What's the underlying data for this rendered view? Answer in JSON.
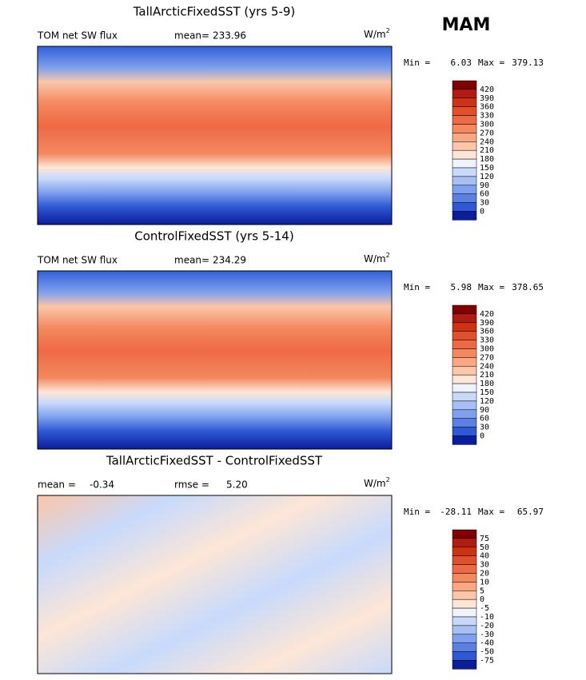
{
  "season": "MAM",
  "colors": [
    "#800000",
    "#b01c10",
    "#cc3313",
    "#e0502a",
    "#ee6a44",
    "#f4885f",
    "#fba882",
    "#fcc6a8",
    "#fde6d6",
    "#eef3ff",
    "#c8dafc",
    "#a6c0f6",
    "#7fa0ee",
    "#5a80e4",
    "#2f58d4",
    "#0a1e9c"
  ],
  "panels": [
    {
      "title": "TallArcticFixedSST (yrs 5-9)",
      "variable": "TOM net SW flux",
      "stat1_label": "mean=",
      "stat1": "233.96",
      "units": "W/m",
      "units_exp": "2",
      "min_label": "Min =",
      "min": "6.03",
      "max_label": "Max =",
      "max": "379.13",
      "levels": [
        "420",
        "390",
        "360",
        "330",
        "300",
        "270",
        "240",
        "210",
        "180",
        "150",
        "120",
        "90",
        "60",
        "30",
        "0"
      ]
    },
    {
      "title": "ControlFixedSST (yrs 5-14)",
      "variable": "TOM net SW flux",
      "stat1_label": "mean=",
      "stat1": "234.29",
      "units": "W/m",
      "units_exp": "2",
      "min_label": "Min =",
      "min": "5.98",
      "max_label": "Max =",
      "max": "378.65",
      "levels": [
        "420",
        "390",
        "360",
        "330",
        "300",
        "270",
        "240",
        "210",
        "180",
        "150",
        "120",
        "90",
        "60",
        "30",
        "0"
      ]
    },
    {
      "title": "TallArcticFixedSST - ControlFixedSST",
      "stat1_label": "mean =",
      "stat1": "-0.34",
      "stat2_label": "rmse =",
      "stat2": "5.20",
      "units": "W/m",
      "units_exp": "2",
      "min_label": "Min =",
      "min": "-28.11",
      "max_label": "Max =",
      "max": "65.97",
      "levels": [
        "75",
        "50",
        "40",
        "30",
        "20",
        "10",
        "5",
        "0",
        "-5",
        "-10",
        "-20",
        "-30",
        "-40",
        "-50",
        "-75"
      ]
    }
  ]
}
